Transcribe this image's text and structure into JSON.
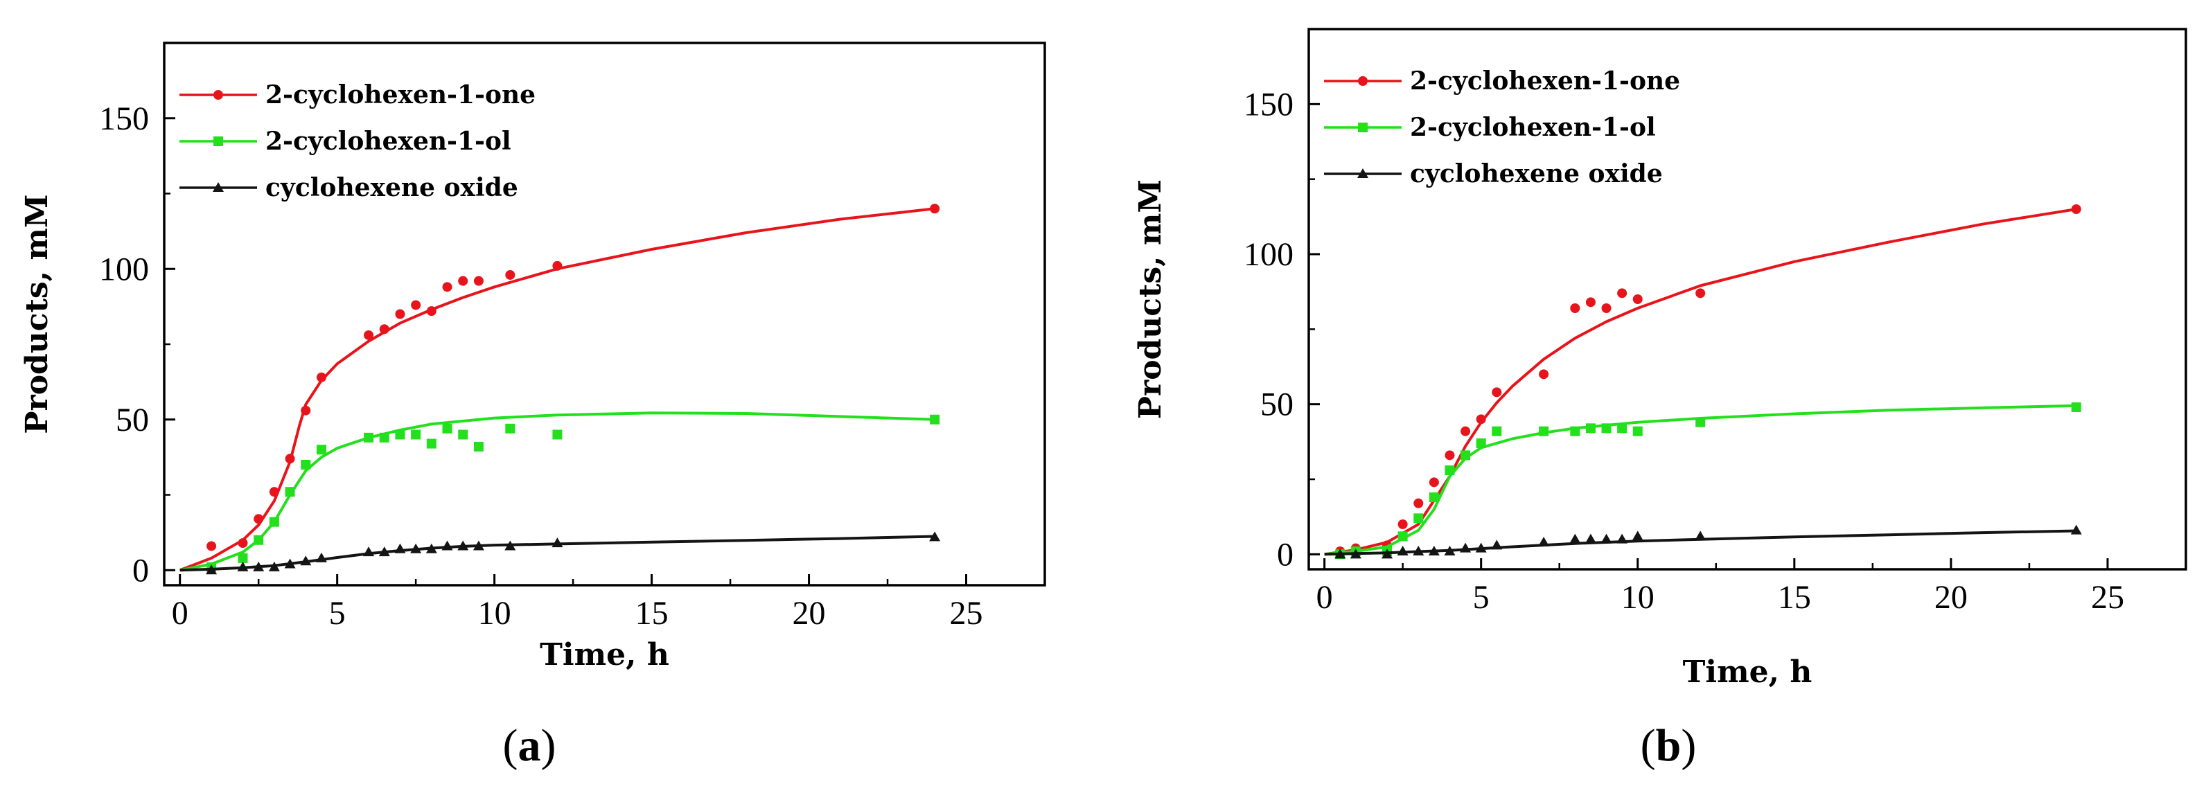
{
  "chart_data": [
    {
      "type": "scatter",
      "panel_label": "a",
      "xlabel": "Time, h",
      "ylabel": "Products, mM",
      "xlim": [
        -0.5,
        27.5
      ],
      "ylim": [
        -5,
        175
      ],
      "xticks": [
        0,
        5,
        10,
        15,
        20,
        25
      ],
      "yticks": [
        0,
        50,
        100,
        150
      ],
      "legend_position": "top-left",
      "series": [
        {
          "name": "2-cyclohexen-1-one",
          "color": "#e8141b",
          "marker": "circle",
          "points": [
            [
              1,
              8
            ],
            [
              2,
              9
            ],
            [
              2.5,
              17
            ],
            [
              3,
              26
            ],
            [
              3.5,
              37
            ],
            [
              4,
              53
            ],
            [
              4.5,
              64
            ],
            [
              6,
              78
            ],
            [
              6.5,
              80
            ],
            [
              7,
              85
            ],
            [
              7.5,
              88
            ],
            [
              8,
              86
            ],
            [
              8.5,
              94
            ],
            [
              9,
              96
            ],
            [
              9.5,
              96
            ],
            [
              10.5,
              98
            ],
            [
              12,
              101
            ],
            [
              24,
              120
            ]
          ],
          "fit": [
            [
              0,
              0
            ],
            [
              1,
              4
            ],
            [
              2,
              10
            ],
            [
              2.5,
              15
            ],
            [
              3,
              23
            ],
            [
              3.5,
              36
            ],
            [
              3.8,
              48
            ],
            [
              4,
              55
            ],
            [
              4.5,
              63
            ],
            [
              5,
              68.5
            ],
            [
              6,
              76
            ],
            [
              7,
              82
            ],
            [
              8,
              86.5
            ],
            [
              9,
              90.5
            ],
            [
              10,
              94
            ],
            [
              12,
              100
            ],
            [
              15,
              106.5
            ],
            [
              18,
              112
            ],
            [
              21,
              116.5
            ],
            [
              24,
              120
            ]
          ]
        },
        {
          "name": "2-cyclohexen-1-ol",
          "color": "#22e01c",
          "marker": "square",
          "points": [
            [
              1,
              1
            ],
            [
              2,
              4
            ],
            [
              2.5,
              10
            ],
            [
              3,
              16
            ],
            [
              3.5,
              26
            ],
            [
              4,
              35
            ],
            [
              4.5,
              40
            ],
            [
              6,
              44
            ],
            [
              6.5,
              44
            ],
            [
              7,
              45
            ],
            [
              7.5,
              45
            ],
            [
              8,
              42
            ],
            [
              8.5,
              47
            ],
            [
              9,
              45
            ],
            [
              9.5,
              41
            ],
            [
              10.5,
              47
            ],
            [
              12,
              45
            ],
            [
              24,
              50
            ]
          ],
          "fit": [
            [
              0,
              0
            ],
            [
              1,
              2
            ],
            [
              2,
              6
            ],
            [
              2.5,
              10
            ],
            [
              3,
              16
            ],
            [
              3.5,
              25
            ],
            [
              4,
              33
            ],
            [
              4.5,
              37.5
            ],
            [
              5,
              40.5
            ],
            [
              6,
              44
            ],
            [
              7,
              46.5
            ],
            [
              8,
              48.5
            ],
            [
              10,
              50.5
            ],
            [
              12,
              51.5
            ],
            [
              15,
              52.2
            ],
            [
              18,
              52
            ],
            [
              21,
              51
            ],
            [
              24,
              50
            ]
          ]
        },
        {
          "name": "cyclohexene oxide",
          "color": "#141414",
          "marker": "triangle",
          "points": [
            [
              1,
              0
            ],
            [
              2,
              1
            ],
            [
              2.5,
              1
            ],
            [
              3,
              1
            ],
            [
              3.5,
              2
            ],
            [
              4,
              3
            ],
            [
              4.5,
              4
            ],
            [
              6,
              6
            ],
            [
              6.5,
              6
            ],
            [
              7,
              7
            ],
            [
              7.5,
              7
            ],
            [
              8,
              7
            ],
            [
              8.5,
              8
            ],
            [
              9,
              8
            ],
            [
              9.5,
              8
            ],
            [
              10.5,
              8
            ],
            [
              12,
              9
            ],
            [
              24,
              11
            ]
          ],
          "fit": [
            [
              0,
              0
            ],
            [
              1,
              0.3
            ],
            [
              2,
              0.8
            ],
            [
              3,
              1.5
            ],
            [
              4,
              2.8
            ],
            [
              5,
              4.2
            ],
            [
              6,
              5.5
            ],
            [
              7,
              6.5
            ],
            [
              8,
              7.3
            ],
            [
              9,
              7.9
            ],
            [
              10,
              8.3
            ],
            [
              12,
              8.7
            ],
            [
              15,
              9.3
            ],
            [
              18,
              9.9
            ],
            [
              21,
              10.5
            ],
            [
              24,
              11.2
            ]
          ]
        }
      ]
    },
    {
      "type": "scatter",
      "panel_label": "b",
      "xlabel": "Time, h",
      "ylabel": "Products, mM",
      "xlim": [
        -0.5,
        27.5
      ],
      "ylim": [
        -5,
        175
      ],
      "xticks": [
        0,
        5,
        10,
        15,
        20,
        25
      ],
      "yticks": [
        0,
        50,
        100,
        150
      ],
      "legend_position": "top-left",
      "series": [
        {
          "name": "2-cyclohexen-1-one",
          "color": "#e8141b",
          "marker": "circle",
          "points": [
            [
              0.5,
              1
            ],
            [
              1,
              2
            ],
            [
              2,
              3
            ],
            [
              2.5,
              10
            ],
            [
              3,
              17
            ],
            [
              3.5,
              24
            ],
            [
              4,
              33
            ],
            [
              4.5,
              41
            ],
            [
              5,
              45
            ],
            [
              5.5,
              54
            ],
            [
              7,
              60
            ],
            [
              8,
              82
            ],
            [
              8.5,
              84
            ],
            [
              9,
              82
            ],
            [
              9.5,
              87
            ],
            [
              10,
              85
            ],
            [
              12,
              87
            ],
            [
              24,
              115
            ]
          ],
          "fit": [
            [
              0,
              0
            ],
            [
              1,
              1.5
            ],
            [
              2,
              4
            ],
            [
              3,
              10
            ],
            [
              4,
              26
            ],
            [
              4.5,
              36
            ],
            [
              5,
              44
            ],
            [
              5.5,
              50.5
            ],
            [
              6,
              56
            ],
            [
              7,
              65
            ],
            [
              8,
              72
            ],
            [
              9,
              77.5
            ],
            [
              10,
              82
            ],
            [
              12,
              89.5
            ],
            [
              15,
              97.5
            ],
            [
              18,
              104
            ],
            [
              21,
              110
            ],
            [
              24,
              115
            ]
          ]
        },
        {
          "name": "2-cyclohexen-1-ol",
          "color": "#22e01c",
          "marker": "square",
          "points": [
            [
              0.5,
              0
            ],
            [
              1,
              1
            ],
            [
              2,
              1
            ],
            [
              2.5,
              6
            ],
            [
              3,
              12
            ],
            [
              3.5,
              19
            ],
            [
              4,
              28
            ],
            [
              4.5,
              33
            ],
            [
              5,
              37
            ],
            [
              5.5,
              41
            ],
            [
              7,
              41
            ],
            [
              8,
              41
            ],
            [
              8.5,
              42
            ],
            [
              9,
              42
            ],
            [
              9.5,
              42
            ],
            [
              10,
              41
            ],
            [
              12,
              44
            ],
            [
              24,
              49
            ]
          ],
          "fit": [
            [
              0,
              0
            ],
            [
              1,
              1
            ],
            [
              2,
              2.5
            ],
            [
              3,
              8
            ],
            [
              3.5,
              15
            ],
            [
              4,
              26
            ],
            [
              4.5,
              32
            ],
            [
              5,
              35.5
            ],
            [
              6,
              38.5
            ],
            [
              7,
              40.5
            ],
            [
              8,
              42
            ],
            [
              10,
              44
            ],
            [
              12,
              45.3
            ],
            [
              15,
              46.8
            ],
            [
              18,
              48
            ],
            [
              21,
              48.8
            ],
            [
              24,
              49.5
            ]
          ]
        },
        {
          "name": "cyclohexene oxide",
          "color": "#141414",
          "marker": "triangle",
          "points": [
            [
              0.5,
              0
            ],
            [
              1,
              0
            ],
            [
              2,
              0
            ],
            [
              2.5,
              1
            ],
            [
              3,
              1
            ],
            [
              3.5,
              1
            ],
            [
              4,
              1
            ],
            [
              4.5,
              2
            ],
            [
              5,
              2
            ],
            [
              5.5,
              3
            ],
            [
              7,
              4
            ],
            [
              8,
              5
            ],
            [
              8.5,
              5
            ],
            [
              9,
              5
            ],
            [
              9.5,
              5
            ],
            [
              10,
              6
            ],
            [
              12,
              6
            ],
            [
              24,
              8
            ]
          ],
          "fit": [
            [
              0,
              0
            ],
            [
              2,
              0.5
            ],
            [
              4,
              1.3
            ],
            [
              6,
              2.5
            ],
            [
              8,
              3.6
            ],
            [
              10,
              4.4
            ],
            [
              12,
              5
            ],
            [
              15,
              5.8
            ],
            [
              18,
              6.5
            ],
            [
              21,
              7.2
            ],
            [
              24,
              7.8
            ]
          ]
        }
      ]
    }
  ]
}
